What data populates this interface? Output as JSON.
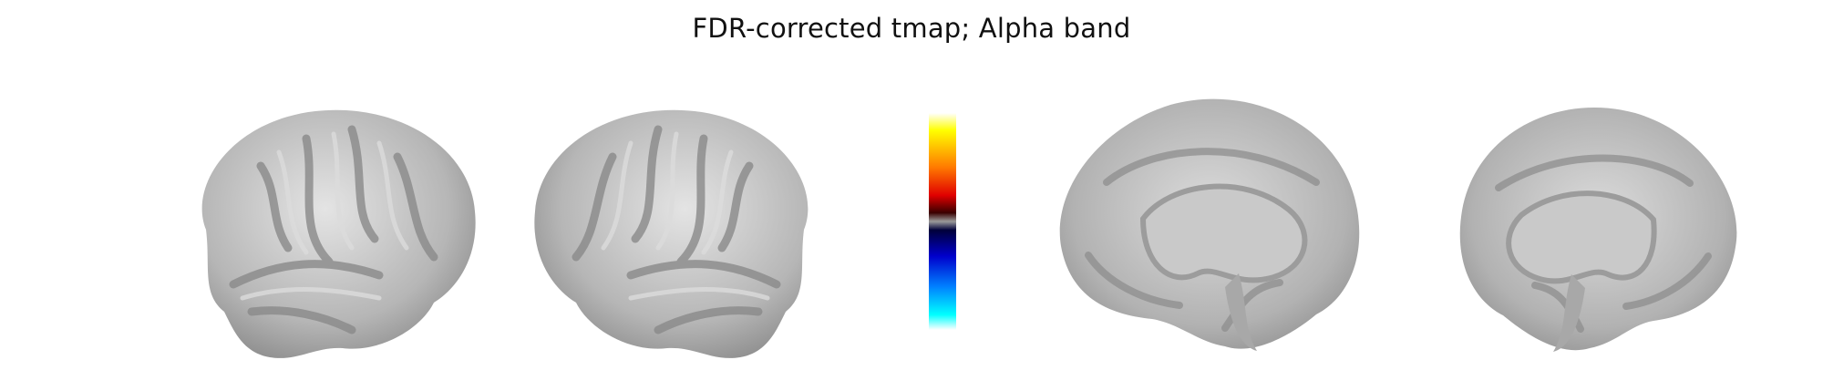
{
  "title": "FDR-corrected tmap; Alpha band",
  "colorbar": {
    "colors": [
      "#ffffff",
      "#ffff00",
      "#ff7a00",
      "#e00000",
      "#3a0000",
      "#9a9a9a",
      "#00003a",
      "#0000cc",
      "#0080ff",
      "#00ffff",
      "#ffffff"
    ]
  },
  "views": [
    "lateral-left",
    "lateral-right",
    "medial-left",
    "medial-right"
  ],
  "colors": {
    "cortex": "#b8b8b8",
    "sulcus": "#8a8a8a",
    "highlight": "#e6e6e6"
  }
}
